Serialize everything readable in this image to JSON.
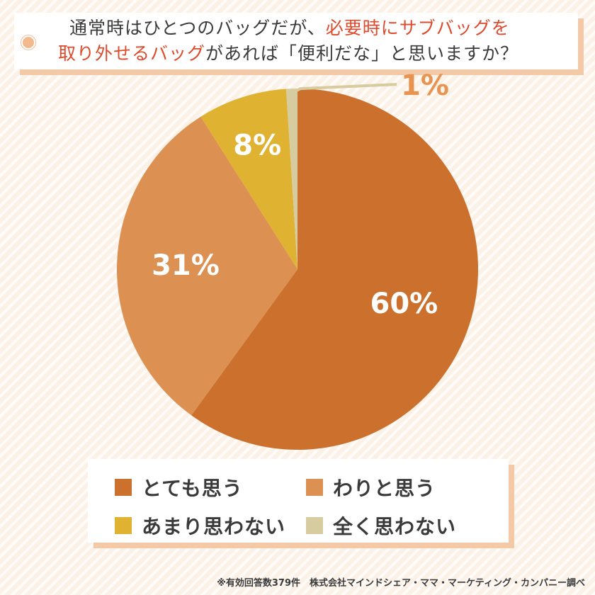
{
  "title": {
    "line1_a": "通常時はひとつのバッグだが、",
    "line1_b": "必要時にサブバッグを",
    "line2_a": "取り外せるバッグ",
    "line2_b": "があれば「便利だな」と思いますか？"
  },
  "chart_data": {
    "type": "pie",
    "slices": [
      {
        "label": "とても思う",
        "value": 60,
        "display": "60%",
        "color": "#cc712d"
      },
      {
        "label": "わりと思う",
        "value": 31,
        "display": "31%",
        "color": "#dc9152"
      },
      {
        "label": "あまり思わない",
        "value": 8,
        "display": "8%",
        "color": "#dfb232"
      },
      {
        "label": "全く思わない",
        "value": 1,
        "display": "1%",
        "color": "#d6cca0"
      }
    ],
    "legend_position": "bottom",
    "outside_label_color": "#e8934f"
  },
  "legend": [
    {
      "label": "とても思う",
      "color": "#cc712d"
    },
    {
      "label": "わりと思う",
      "color": "#dc9152"
    },
    {
      "label": "あまり思わない",
      "color": "#dfb232"
    },
    {
      "label": "全く思わない",
      "color": "#d6cca0"
    }
  ],
  "footer": "※有効回答数379件　株式会社マインドシェア・ママ・マーケティング・カンパニー調べ"
}
